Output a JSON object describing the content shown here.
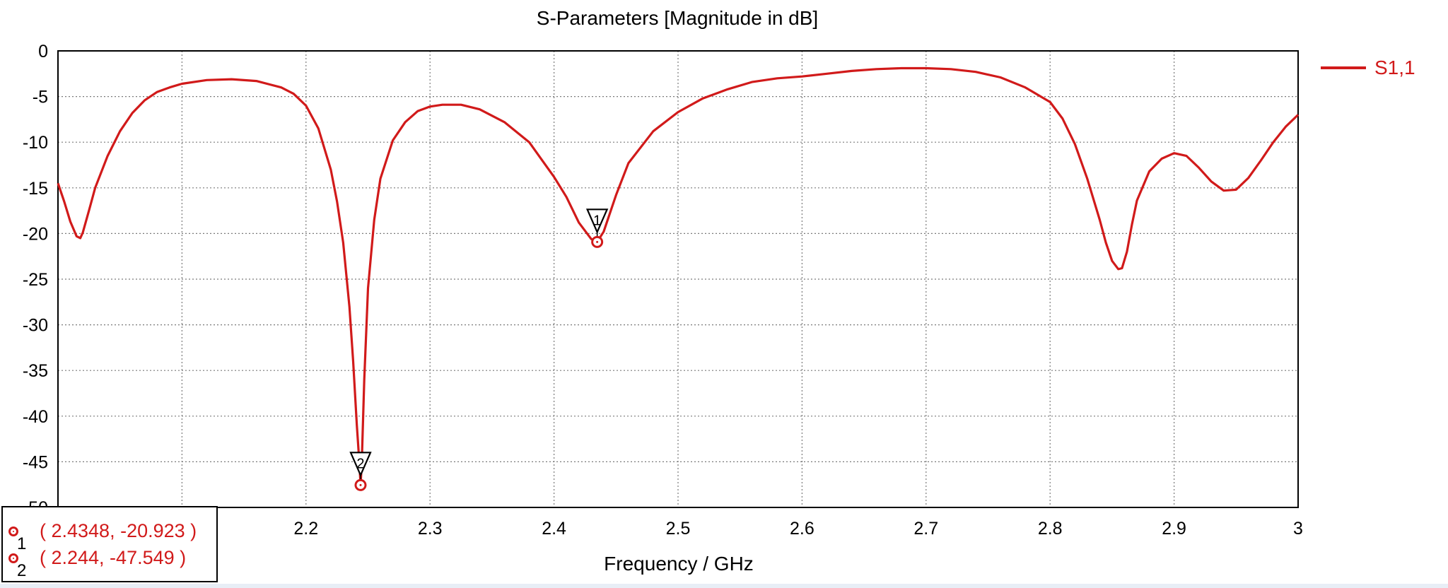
{
  "chart_data": {
    "type": "line",
    "title": "S-Parameters [Magnitude in dB]",
    "xlabel": "Frequency / GHz",
    "ylabel": "",
    "xlim": [
      2.0,
      3.0
    ],
    "ylim": [
      -50,
      0
    ],
    "x_ticks": [
      "2.2",
      "2.3",
      "2.4",
      "2.5",
      "2.6",
      "2.7",
      "2.8",
      "2.9",
      "3"
    ],
    "x_tick_values": [
      2.2,
      2.3,
      2.4,
      2.5,
      2.6,
      2.7,
      2.8,
      2.9,
      3.0
    ],
    "y_ticks": [
      "0",
      "-5",
      "-10",
      "-15",
      "-20",
      "-25",
      "-30",
      "-35",
      "-40",
      "-45",
      "-50"
    ],
    "y_tick_values": [
      0,
      -5,
      -10,
      -15,
      -20,
      -25,
      -30,
      -35,
      -40,
      -45,
      -50
    ],
    "grid": true,
    "legend_position": "top-right",
    "series": [
      {
        "name": "S1,1",
        "color": "#d11a1a",
        "x": [
          2.0,
          2.005,
          2.01,
          2.015,
          2.018,
          2.02,
          2.025,
          2.03,
          2.04,
          2.05,
          2.06,
          2.07,
          2.08,
          2.09,
          2.1,
          2.12,
          2.14,
          2.16,
          2.18,
          2.19,
          2.2,
          2.21,
          2.22,
          2.225,
          2.23,
          2.235,
          2.238,
          2.241,
          2.243,
          2.244,
          2.245,
          2.247,
          2.25,
          2.255,
          2.26,
          2.27,
          2.28,
          2.29,
          2.3,
          2.31,
          2.325,
          2.34,
          2.36,
          2.38,
          2.4,
          2.41,
          2.42,
          2.43,
          2.4348,
          2.44,
          2.45,
          2.46,
          2.48,
          2.5,
          2.52,
          2.54,
          2.56,
          2.58,
          2.6,
          2.62,
          2.64,
          2.66,
          2.68,
          2.7,
          2.72,
          2.74,
          2.76,
          2.78,
          2.8,
          2.81,
          2.82,
          2.83,
          2.84,
          2.845,
          2.85,
          2.855,
          2.858,
          2.862,
          2.866,
          2.87,
          2.88,
          2.89,
          2.9,
          2.91,
          2.92,
          2.93,
          2.94,
          2.95,
          2.96,
          2.97,
          2.98,
          2.99,
          3.0
        ],
        "y": [
          -14.5,
          -16.5,
          -18.7,
          -20.3,
          -20.5,
          -19.9,
          -17.5,
          -15.0,
          -11.5,
          -8.8,
          -6.8,
          -5.4,
          -4.5,
          -4.0,
          -3.6,
          -3.2,
          -3.1,
          -3.3,
          -4.0,
          -4.7,
          -6.0,
          -8.5,
          -13.0,
          -16.5,
          -21.0,
          -28.0,
          -34.0,
          -41.0,
          -45.0,
          -47.549,
          -45.0,
          -36.0,
          -26.0,
          -18.5,
          -14.0,
          -9.8,
          -7.8,
          -6.6,
          -6.1,
          -5.9,
          -5.9,
          -6.4,
          -7.8,
          -10.0,
          -13.8,
          -16.0,
          -18.8,
          -20.6,
          -20.923,
          -19.8,
          -15.8,
          -12.3,
          -8.8,
          -6.7,
          -5.2,
          -4.2,
          -3.4,
          -3.0,
          -2.8,
          -2.5,
          -2.2,
          -2.0,
          -1.9,
          -1.9,
          -2.0,
          -2.3,
          -2.9,
          -4.0,
          -5.6,
          -7.4,
          -10.2,
          -14.0,
          -18.5,
          -21.0,
          -23.0,
          -23.9,
          -23.8,
          -22.0,
          -19.0,
          -16.4,
          -13.2,
          -11.8,
          -11.2,
          -11.5,
          -12.8,
          -14.3,
          -15.3,
          -15.2,
          -13.9,
          -12.0,
          -10.0,
          -8.3,
          -7.0
        ]
      }
    ],
    "markers": [
      {
        "id": "1",
        "x": 2.4348,
        "y": -20.923,
        "label": "( 2.4348, -20.923 )"
      },
      {
        "id": "2",
        "x": 2.244,
        "y": -47.549,
        "label": "( 2.244, -47.549 )"
      }
    ]
  }
}
